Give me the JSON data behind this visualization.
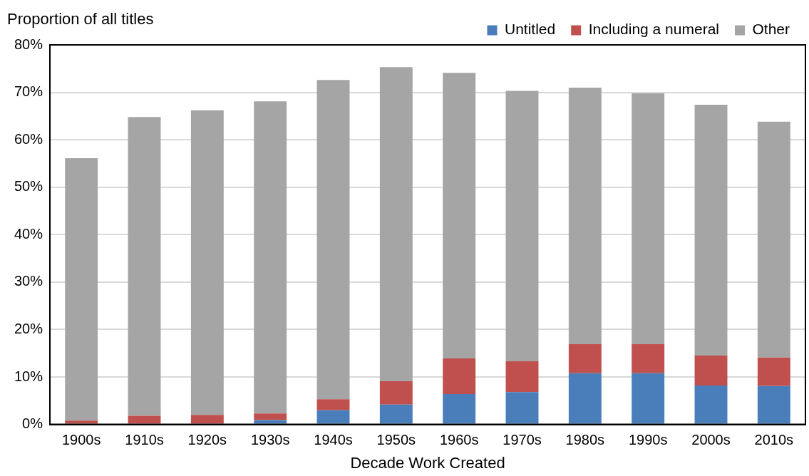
{
  "chart_data": {
    "type": "bar",
    "stacked": true,
    "ylabel": "Proportion of all titles",
    "xlabel": "Decade Work Created",
    "categories": [
      "1900s",
      "1910s",
      "1920s",
      "1930s",
      "1940s",
      "1950s",
      "1960s",
      "1970s",
      "1980s",
      "1990s",
      "2000s",
      "2010s"
    ],
    "series": [
      {
        "name": "Untitled",
        "color": "#4a7ebb",
        "values": [
          0,
          0,
          0,
          0.9,
          3.0,
          4.2,
          6.4,
          6.8,
          10.8,
          10.8,
          8.2,
          8.1
        ]
      },
      {
        "name": "Including a numeral",
        "color": "#c0504d",
        "values": [
          0.8,
          1.8,
          2.0,
          1.4,
          2.3,
          4.9,
          7.5,
          6.5,
          6.1,
          6.1,
          6.3,
          6.0
        ]
      },
      {
        "name": "Other",
        "color": "#a5a5a5",
        "values": [
          55.3,
          63.0,
          64.2,
          65.8,
          67.3,
          66.2,
          60.2,
          57.0,
          54.1,
          52.9,
          52.9,
          49.7
        ]
      }
    ],
    "ylim": [
      0,
      80
    ],
    "yticks": [
      {
        "value": 0,
        "label": "0%"
      },
      {
        "value": 10,
        "label": "10%"
      },
      {
        "value": 20,
        "label": "20%"
      },
      {
        "value": 30,
        "label": "30%"
      },
      {
        "value": 40,
        "label": "40%"
      },
      {
        "value": 50,
        "label": "50%"
      },
      {
        "value": 60,
        "label": "60%"
      },
      {
        "value": 70,
        "label": "70%"
      },
      {
        "value": 80,
        "label": "80%"
      }
    ],
    "grid": "y",
    "legend": "top right"
  }
}
